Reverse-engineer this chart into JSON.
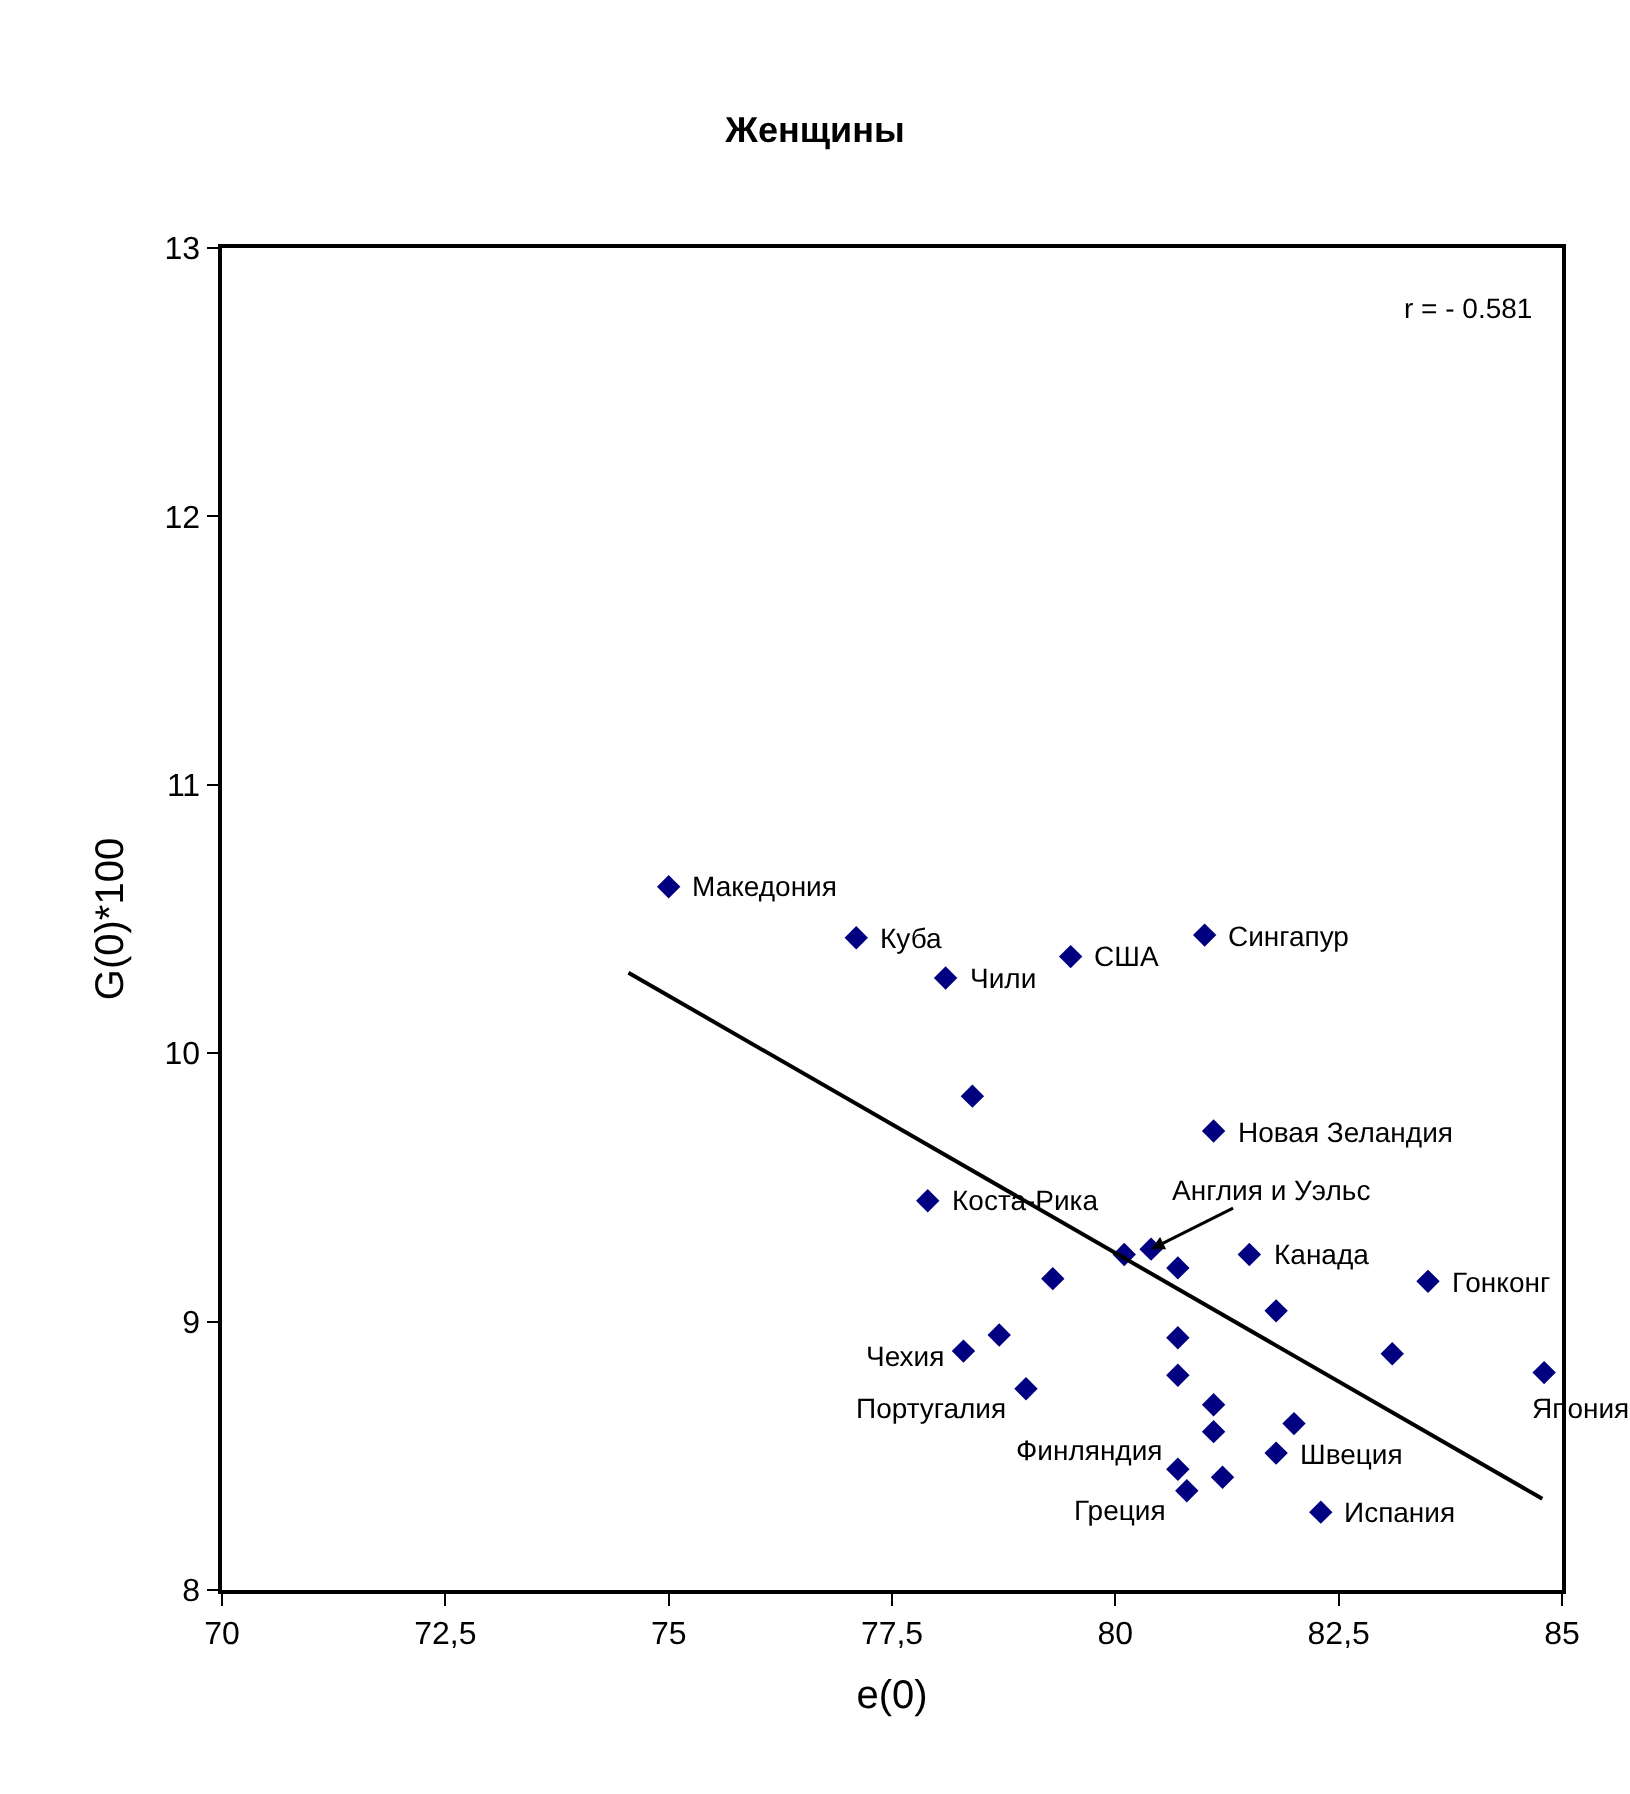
{
  "chart_data": {
    "type": "scatter",
    "title": "Женщины",
    "xlabel": "e(0)",
    "ylabel": "G(0)*100",
    "xlim": [
      70,
      85
    ],
    "ylim": [
      8,
      13
    ],
    "xticks": [
      70,
      {
        "value": 72.5,
        "label": "72,5"
      },
      75,
      {
        "value": 77.5,
        "label": "77,5"
      },
      80,
      {
        "value": 82.5,
        "label": "82,5"
      },
      85
    ],
    "yticks": [
      8,
      9,
      10,
      11,
      12,
      13
    ],
    "marker": "diamond",
    "series": [
      {
        "type": "scatter",
        "color": "#000080",
        "x": [
          75.0,
          77.1,
          78.1,
          79.5,
          81.0,
          78.4,
          81.1,
          77.9,
          80.4,
          80.1,
          80.7,
          79.3,
          81.5,
          83.5,
          81.8,
          78.7,
          78.3,
          80.7,
          83.1,
          84.8,
          80.7,
          79.0,
          81.1,
          82.0,
          81.1,
          81.8,
          80.7,
          81.2,
          80.8,
          82.3
        ],
        "values": [
          10.62,
          10.43,
          10.28,
          10.36,
          10.44,
          9.84,
          9.71,
          9.45,
          9.27,
          9.25,
          9.2,
          9.16,
          9.25,
          9.15,
          9.04,
          8.95,
          8.89,
          8.94,
          8.88,
          8.81,
          8.8,
          8.75,
          8.69,
          8.62,
          8.59,
          8.51,
          8.45,
          8.42,
          8.37,
          8.29
        ]
      },
      {
        "type": "line",
        "color": "#000000",
        "marker": "none",
        "x": [
          74.55,
          84.78
        ],
        "values": [
          10.3,
          8.34
        ]
      }
    ],
    "annotations": [
      {
        "text": "Македония",
        "x": 75.0,
        "y": 10.62
      },
      {
        "text": "Куба",
        "x": 77.1,
        "y": 10.43
      },
      {
        "text": "Чили",
        "x": 78.1,
        "y": 10.28
      },
      {
        "text": "США",
        "x": 79.5,
        "y": 10.36
      },
      {
        "text": "Сингапур",
        "x": 81.0,
        "y": 10.44
      },
      {
        "text": "Новая Зеландия",
        "x": 81.1,
        "y": 9.71
      },
      {
        "text": "Коста-Рика",
        "x": 77.9,
        "y": 9.45
      },
      {
        "text": "Англия и Уэльс",
        "x": 80.4,
        "y": 9.27
      },
      {
        "text": "Канада",
        "x": 81.5,
        "y": 9.25
      },
      {
        "text": "Гонконг",
        "x": 83.5,
        "y": 9.15
      },
      {
        "text": "Чехия",
        "x": 78.3,
        "y": 8.89
      },
      {
        "text": "Португалия",
        "x": 79.0,
        "y": 8.75
      },
      {
        "text": "Финляндия",
        "x": 80.7,
        "y": 8.45
      },
      {
        "text": "Греция",
        "x": 80.8,
        "y": 8.37
      },
      {
        "text": "Швеция",
        "x": 81.8,
        "y": 8.51
      },
      {
        "text": "Испания",
        "x": 82.3,
        "y": 8.29
      },
      {
        "text": "Япония",
        "x": 84.8,
        "y": 8.81
      },
      "r = - 0.581"
    ]
  }
}
